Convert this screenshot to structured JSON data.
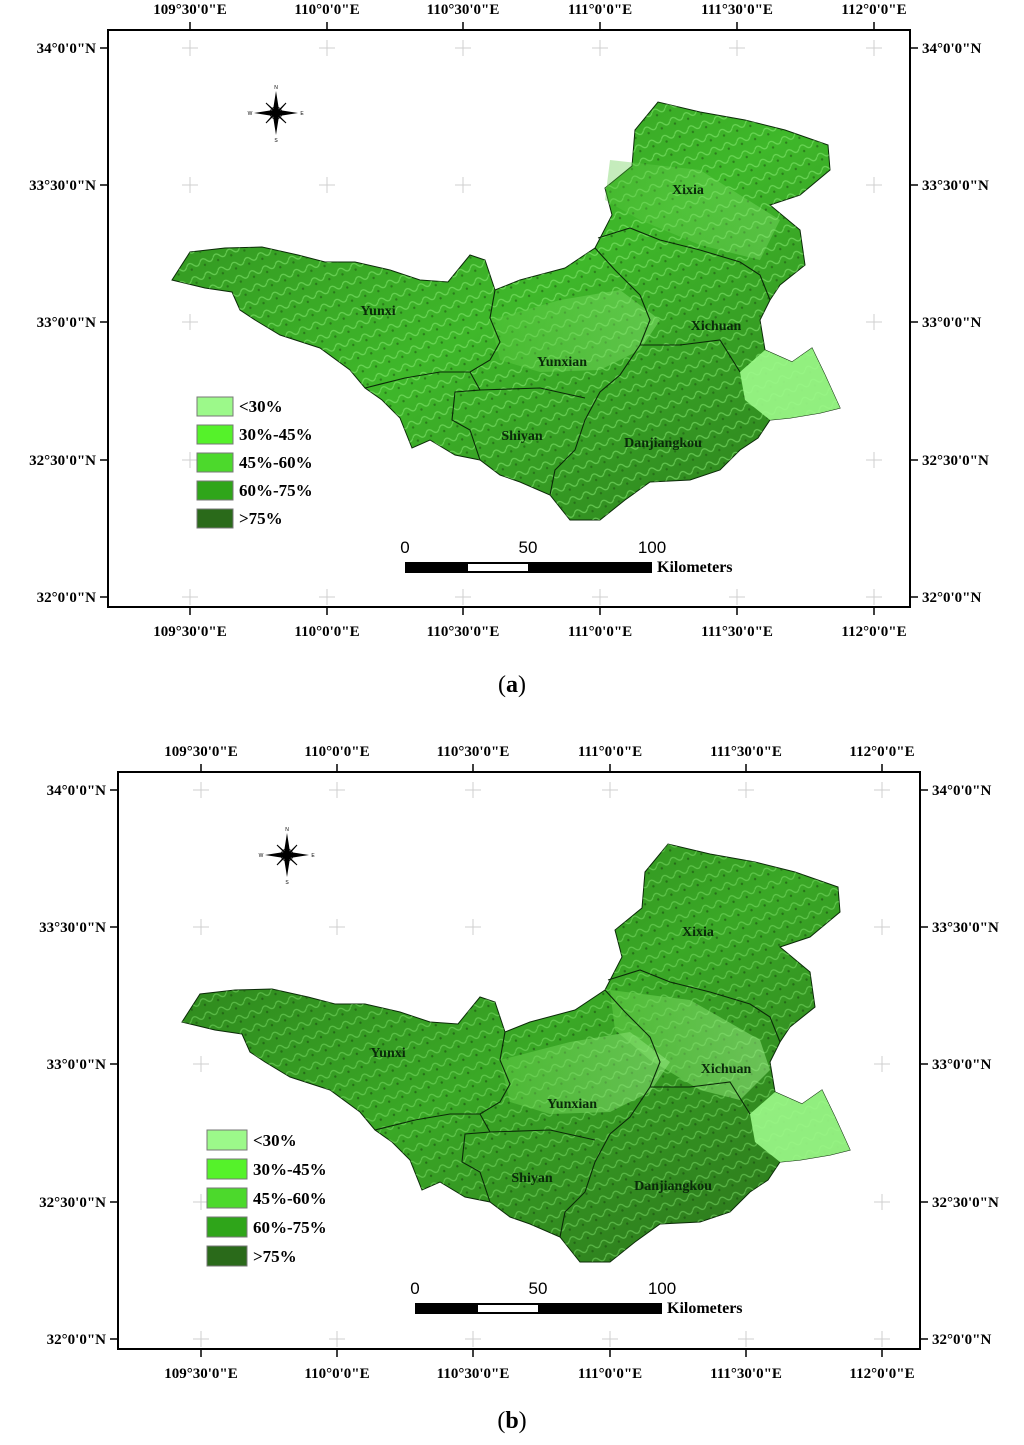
{
  "maps": [
    {
      "caption_open": "(",
      "caption_letter": "a",
      "caption_close": ")",
      "lon_labels": [
        "109°30'0\"E",
        "110°0'0\"E",
        "110°30'0\"E",
        "111°0'0\"E",
        "111°30'0\"E",
        "112°0'0\"E"
      ],
      "lat_labels": [
        "34°0'0\"N",
        "33°30'0\"N",
        "33°0'0\"N",
        "32°30'0\"N",
        "32°0'0\"N"
      ],
      "regions": [
        "Xixia",
        "Yunxi",
        "Xichuan",
        "Yunxian",
        "Shiyan",
        "Danjiangkou"
      ],
      "legend": [
        {
          "label": "<30%",
          "color": "#9cf98a"
        },
        {
          "label": "30%-45%",
          "color": "#55f22a"
        },
        {
          "label": "45%-60%",
          "color": "#4cd92c"
        },
        {
          "label": "60%-75%",
          "color": "#2fa51a"
        },
        {
          "label": ">75%",
          "color": "#2a6a1a"
        }
      ],
      "scale": {
        "ticks": [
          "0",
          "50",
          "100"
        ],
        "unit": "Kilometers"
      },
      "compass": {
        "n": "N",
        "s": "S",
        "e": "E",
        "w": "W"
      }
    },
    {
      "caption_open": "(",
      "caption_letter": "b",
      "caption_close": ")",
      "lon_labels": [
        "109°30'0\"E",
        "110°0'0\"E",
        "110°30'0\"E",
        "111°0'0\"E",
        "111°30'0\"E",
        "112°0'0\"E"
      ],
      "lat_labels": [
        "34°0'0\"N",
        "33°30'0\"N",
        "33°0'0\"N",
        "32°30'0\"N",
        "32°0'0\"N"
      ],
      "regions": [
        "Xixia",
        "Yunxi",
        "Xichuan",
        "Yunxian",
        "Shiyan",
        "Danjiangkou"
      ],
      "legend": [
        {
          "label": "<30%",
          "color": "#9cf98a"
        },
        {
          "label": "30%-45%",
          "color": "#55f22a"
        },
        {
          "label": "45%-60%",
          "color": "#4cd92c"
        },
        {
          "label": "60%-75%",
          "color": "#2fa51a"
        },
        {
          "label": ">75%",
          "color": "#2a6a1a"
        }
      ],
      "scale": {
        "ticks": [
          "0",
          "50",
          "100"
        ],
        "unit": "Kilometers"
      },
      "compass": {
        "n": "N",
        "s": "S",
        "e": "E",
        "w": "W"
      }
    }
  ]
}
